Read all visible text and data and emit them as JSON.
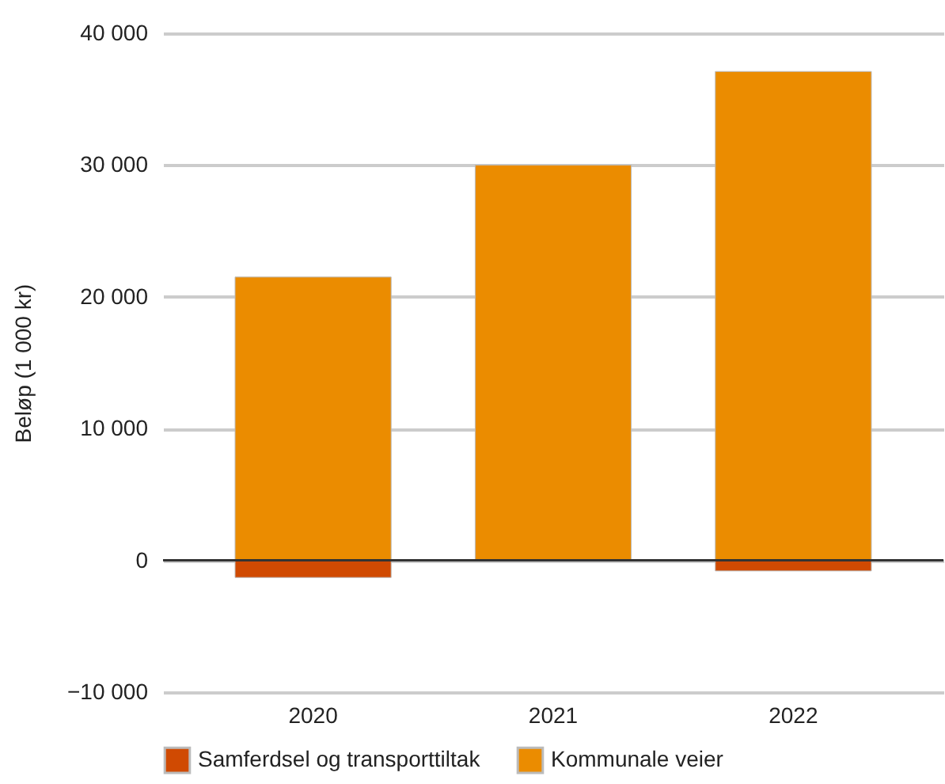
{
  "chart_data": {
    "type": "bar",
    "stacked": true,
    "ylabel": "Beløp (1 000 kr)",
    "categories": [
      "2020",
      "2021",
      "2022"
    ],
    "series": [
      {
        "name": "Samferdsel og transporttiltak",
        "color": "#d04a02",
        "values": [
          -1300,
          0,
          -800
        ]
      },
      {
        "name": "Kommunale veier",
        "color": "#eb8c00",
        "values": [
          21500,
          30000,
          37100
        ]
      }
    ],
    "ylim": [
      -10000,
      40000
    ],
    "yticks": [
      {
        "value": -10000,
        "label": "−10 000"
      },
      {
        "value": 0,
        "label": "0"
      },
      {
        "value": 10000,
        "label": "10 000"
      },
      {
        "value": 20000,
        "label": "20 000"
      },
      {
        "value": 30000,
        "label": "30 000"
      },
      {
        "value": 40000,
        "label": "40 000"
      }
    ],
    "ref_lines": [
      {
        "axis": "y",
        "value": 0,
        "color": "#333333"
      }
    ],
    "grid": "y",
    "legend": "bottom"
  }
}
